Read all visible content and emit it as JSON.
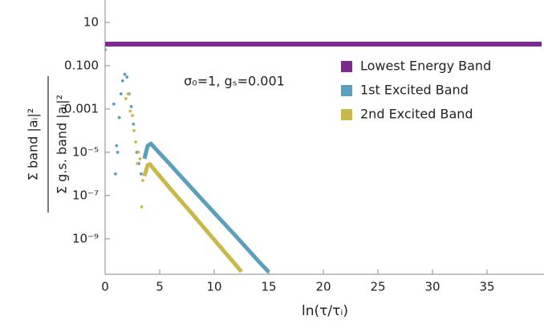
{
  "chart_data": {
    "type": "line",
    "annotation": "σ₀=1, gₛ=0.001",
    "x_label": "ln(τ/τᵢ)",
    "y_label": {
      "numerator": "Σ band |aᵢ|²",
      "denominator": "Σ g.s. band |aᵢ|²"
    },
    "xlim": [
      0,
      40
    ],
    "xticks": [
      0,
      5,
      10,
      15,
      20,
      25,
      30,
      35
    ],
    "ylim": [
      2.3e-11,
      100
    ],
    "log_y": true,
    "yticks": [
      10,
      {
        "value": 0.1,
        "label": "0.100"
      },
      0.001,
      {
        "value": 1e-05,
        "label": "10⁻⁵"
      },
      {
        "value": 1e-07,
        "label": "10⁻⁷"
      },
      {
        "value": 1e-09,
        "label": "10⁻⁹"
      }
    ],
    "legend_position": "right",
    "series": [
      {
        "name": "Lowest Energy Band",
        "color": "#7b2a8f",
        "x": [
          0,
          40
        ],
        "values": [
          1,
          1
        ]
      },
      {
        "name": "1st Excited Band",
        "color": "#5b9fbc",
        "x": [
          3.6,
          3.9,
          4.2,
          5,
          6,
          8,
          10,
          12,
          14,
          15
        ],
        "values": [
          5e-06,
          2e-05,
          2.5e-05,
          9e-06,
          2.6e-06,
          2e-07,
          1.6e-08,
          1.3e-09,
          1e-10,
          2.9e-11
        ],
        "scatter": {
          "x": [
            0,
            0.8,
            0.95,
            1.05,
            1.15,
            1.3,
            1.45,
            1.6,
            1.8,
            2.0,
            2.2,
            2.4,
            2.6,
            2.9,
            3.1,
            3.3
          ],
          "values": [
            0.55,
            0.0017,
            1e-06,
            2e-05,
            1e-05,
            0.0004,
            0.005,
            0.02,
            0.04,
            0.03,
            0.005,
            0.0013,
            0.0002,
            1e-05,
            3e-06,
            1e-06
          ]
        }
      },
      {
        "name": "2nd Excited Band",
        "color": "#c9b84a",
        "x": [
          3.6,
          3.9,
          4.1,
          5,
          6,
          8,
          10,
          12,
          12.5
        ],
        "values": [
          8e-07,
          2.5e-06,
          2.8e-06,
          8e-07,
          2e-07,
          1.4e-08,
          9e-10,
          6e-11,
          3e-11
        ],
        "scatter": {
          "x": [
            1.9,
            2.1,
            2.3,
            2.5,
            2.65,
            2.8,
            2.95,
            3.05,
            3.2,
            3.35,
            3.45
          ],
          "values": [
            0.003,
            0.005,
            0.0008,
            0.0005,
            0.0001,
            3e-05,
            3e-06,
            1e-05,
            5e-06,
            3e-08,
            5e-07
          ]
        }
      }
    ]
  }
}
